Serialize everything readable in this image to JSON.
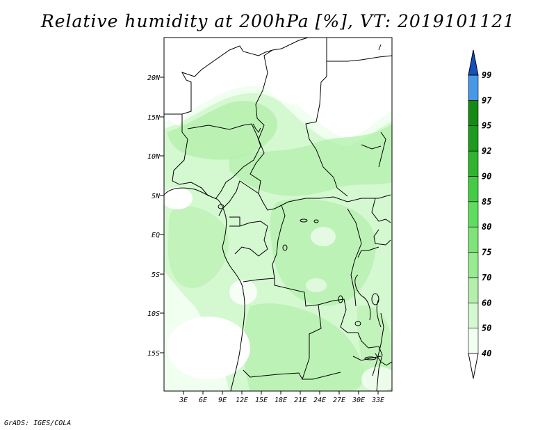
{
  "title": "Relative humidity at 200hPa [%], VT: 2019101121",
  "footer": "GrADS: IGES/COLA",
  "map": {
    "lat_labels": [
      "20N",
      "15N",
      "10N",
      "5N",
      "EQ",
      "5S",
      "10S",
      "15S"
    ],
    "lon_labels": [
      "3E",
      "6E",
      "9E",
      "12E",
      "15E",
      "18E",
      "21E",
      "24E",
      "27E",
      "30E",
      "33E"
    ],
    "extent": {
      "lon_min": 0,
      "lon_max": 35,
      "lat_min": -20,
      "lat_max": 25
    }
  },
  "colorbar": {
    "levels": [
      "40",
      "50",
      "60",
      "70",
      "75",
      "80",
      "85",
      "90",
      "92",
      "95",
      "97",
      "99"
    ],
    "colors": [
      "#f0fff0",
      "#d4f8d0",
      "#b4f0ac",
      "#98ec90",
      "#7ee47a",
      "#60dc5e",
      "#44cc44",
      "#2eb42e",
      "#1e9a1e",
      "#148a14",
      "#4898e8",
      "#2c70d8",
      "#1450c0"
    ]
  }
}
